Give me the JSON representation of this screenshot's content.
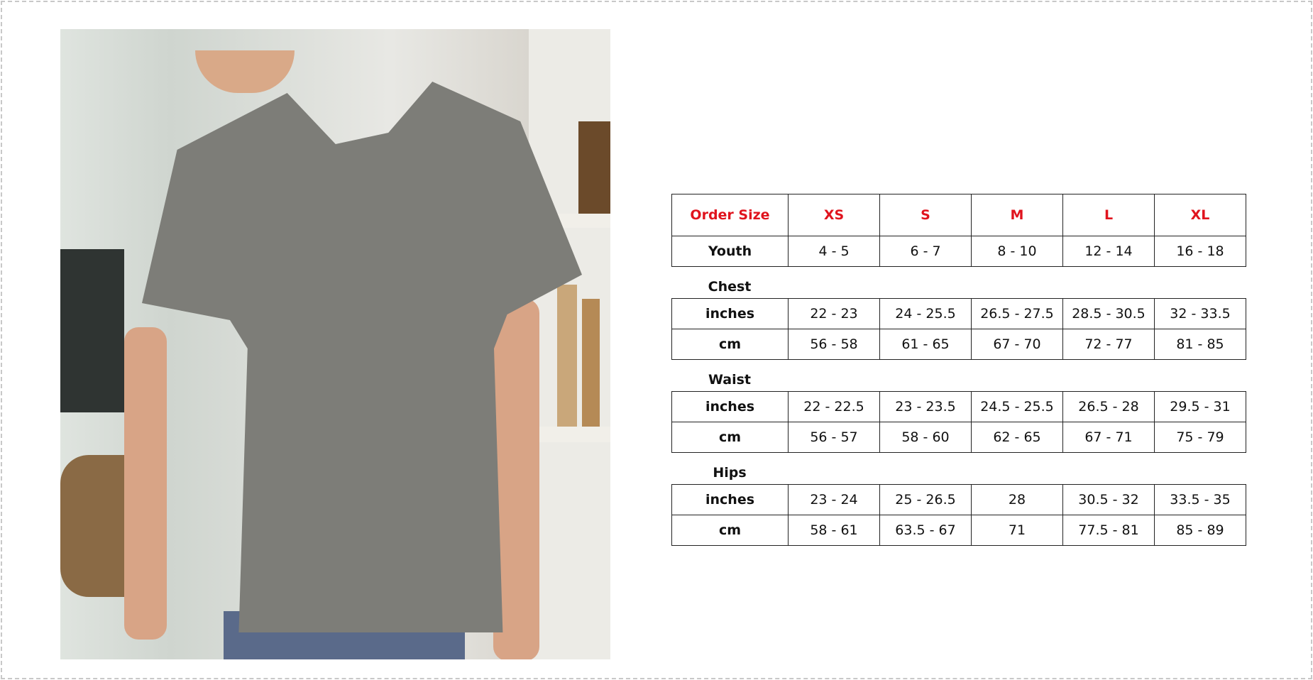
{
  "size_chart": {
    "header": {
      "label": "Order Size",
      "sizes": [
        "XS",
        "S",
        "M",
        "L",
        "XL"
      ]
    },
    "youth": {
      "label": "Youth",
      "values": [
        "4 - 5",
        "6 - 7",
        "8 - 10",
        "12 - 14",
        "16 - 18"
      ]
    },
    "sections": [
      {
        "title": "Chest",
        "rows": [
          {
            "label": "inches",
            "values": [
              "22 - 23",
              "24 - 25.5",
              "26.5 - 27.5",
              "28.5 - 30.5",
              "32 - 33.5"
            ]
          },
          {
            "label": "cm",
            "values": [
              "56 - 58",
              "61 - 65",
              "67 - 70",
              "72 - 77",
              "81 - 85"
            ]
          }
        ]
      },
      {
        "title": "Waist",
        "rows": [
          {
            "label": "inches",
            "values": [
              "22 - 22.5",
              "23 - 23.5",
              "24.5 - 25.5",
              "26.5 - 28",
              "29.5 - 31"
            ]
          },
          {
            "label": "cm",
            "values": [
              "56 - 57",
              "58 - 60",
              "62 - 65",
              "67 - 71",
              "75 - 79"
            ]
          }
        ]
      },
      {
        "title": "Hips",
        "rows": [
          {
            "label": "inches",
            "values": [
              "23 - 24",
              "25 - 26.5",
              "28",
              "30.5 - 32",
              "33.5 - 35"
            ]
          },
          {
            "label": "cm",
            "values": [
              "58 - 61",
              "63.5 - 67",
              "71",
              "77.5 - 81",
              "85 - 89"
            ]
          }
        ]
      }
    ]
  },
  "colors": {
    "header_text": "#e0141e",
    "shirt": "#7d7d78"
  }
}
